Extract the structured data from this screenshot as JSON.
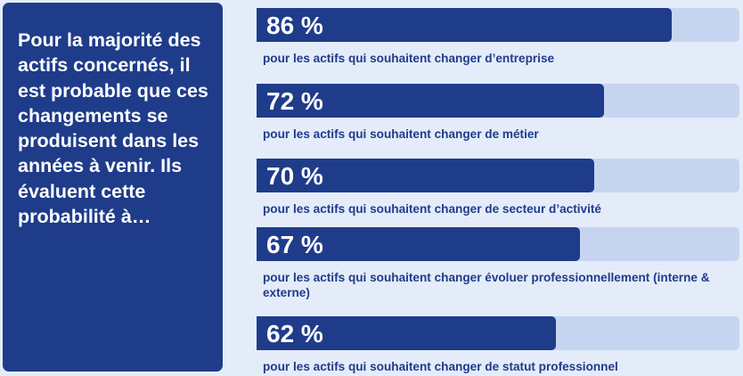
{
  "intro_text": "Pour la majorité des actifs concernés, il est probable que ces changements se produisent dans les années à venir. Ils évaluent cette probabilité à…",
  "colors": {
    "background": "#e4ecfa",
    "accent": "#1f3c8a",
    "track": "#c6d5ef",
    "text_on_accent": "#ffffff"
  },
  "chart_data": {
    "type": "bar",
    "orientation": "horizontal",
    "ylim": [
      0,
      100
    ],
    "value_unit": "%",
    "categories": [
      "pour les actifs qui souhaitent changer d’entreprise",
      "pour les actifs qui souhaitent changer de métier",
      "pour les actifs qui souhaitent changer de secteur d’activité",
      "pour les actifs qui souhaitent changer évoluer professionnellement (interne & externe)",
      "pour les actifs qui souhaitent changer de statut professionnel"
    ],
    "values": [
      86,
      72,
      70,
      67,
      62
    ],
    "value_labels": [
      "86 %",
      "72 %",
      "70 %",
      "67 %",
      "62 %"
    ]
  }
}
